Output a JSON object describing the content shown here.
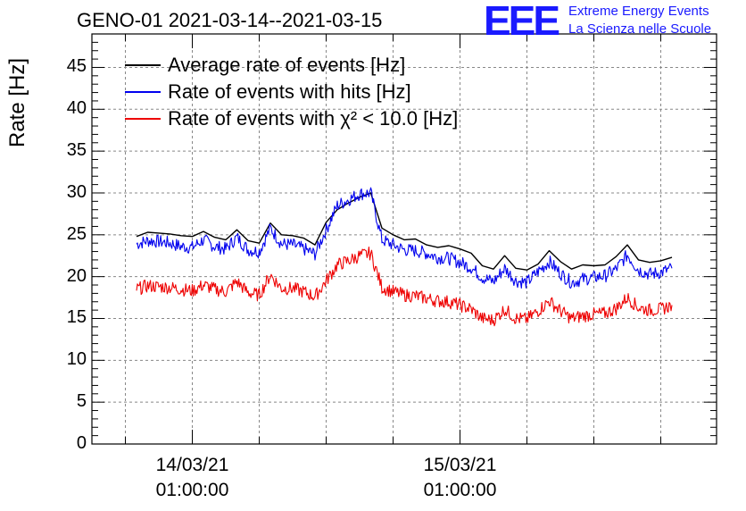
{
  "header": {
    "title": "GENO-01 2021-03-14--2021-03-15",
    "logo_text": "EEE",
    "brand_line1": "Extreme Energy Events",
    "brand_line2": "La Scienza nelle Scuole"
  },
  "colors": {
    "average": "#000000",
    "hits": "#0000ee",
    "chi2": "#ee0000",
    "grid": "#888888",
    "brand": "#1a1aff"
  },
  "chart_data": {
    "type": "line",
    "ylabel": "Rate [Hz]",
    "ylim": [
      0,
      49
    ],
    "yticks": [
      0,
      5,
      10,
      15,
      20,
      25,
      30,
      35,
      40,
      45
    ],
    "ytick_labels": [
      "0",
      "5",
      "10",
      "15",
      "20",
      "25",
      "30",
      "35",
      "40",
      "45"
    ],
    "xlim_hours_label": "2021-03-14 to 2021-03-15",
    "xticks": [
      {
        "date": "14/03/21",
        "time": "01:00:00"
      },
      {
        "date": "15/03/21",
        "time": "01:00:00"
      }
    ],
    "grid": true,
    "legend_position": "top-left",
    "series": [
      {
        "name": "Average rate of events [Hz]",
        "color": "#000000",
        "x": [
          "2021-03-13 20:00",
          "2021-03-13 21:00",
          "2021-03-13 22:00",
          "2021-03-13 23:00",
          "2021-03-14 00:00",
          "2021-03-14 01:00",
          "2021-03-14 02:00",
          "2021-03-14 03:00",
          "2021-03-14 04:00",
          "2021-03-14 05:00",
          "2021-03-14 06:00",
          "2021-03-14 07:00",
          "2021-03-14 08:00",
          "2021-03-14 09:00",
          "2021-03-14 10:00",
          "2021-03-14 11:00",
          "2021-03-14 12:00",
          "2021-03-14 13:00",
          "2021-03-14 14:00",
          "2021-03-14 15:00",
          "2021-03-14 16:00",
          "2021-03-14 17:00",
          "2021-03-14 18:00",
          "2021-03-14 19:00",
          "2021-03-14 20:00",
          "2021-03-14 21:00",
          "2021-03-14 22:00",
          "2021-03-14 23:00",
          "2021-03-15 00:00",
          "2021-03-15 01:00",
          "2021-03-15 02:00",
          "2021-03-15 03:00",
          "2021-03-15 04:00",
          "2021-03-15 05:00",
          "2021-03-15 06:00",
          "2021-03-15 07:00",
          "2021-03-15 08:00",
          "2021-03-15 09:00",
          "2021-03-15 10:00",
          "2021-03-15 11:00",
          "2021-03-15 12:00",
          "2021-03-15 13:00",
          "2021-03-15 14:00",
          "2021-03-15 15:00",
          "2021-03-15 16:00",
          "2021-03-15 17:00",
          "2021-03-15 18:00",
          "2021-03-15 19:00",
          "2021-03-15 20:00"
        ],
        "y": [
          24.8,
          25.3,
          25.2,
          25.1,
          24.9,
          24.8,
          25.4,
          24.7,
          24.4,
          25.6,
          24.3,
          24.0,
          26.4,
          25.0,
          24.9,
          24.6,
          23.8,
          26.5,
          28.0,
          28.8,
          29.5,
          30.0,
          25.8,
          25.0,
          24.4,
          24.5,
          23.8,
          23.5,
          23.7,
          23.3,
          22.8,
          21.3,
          20.9,
          22.5,
          21.0,
          20.8,
          21.5,
          23.1,
          21.8,
          20.9,
          21.4,
          21.3,
          21.4,
          22.4,
          23.8,
          22.0,
          21.7,
          21.9,
          22.3
        ]
      },
      {
        "name": "Rate of events with hits [Hz]",
        "color": "#0000ee",
        "x": [
          "2021-03-13 20:00",
          "2021-03-13 21:00",
          "2021-03-13 22:00",
          "2021-03-13 23:00",
          "2021-03-14 00:00",
          "2021-03-14 01:00",
          "2021-03-14 02:00",
          "2021-03-14 03:00",
          "2021-03-14 04:00",
          "2021-03-14 05:00",
          "2021-03-14 06:00",
          "2021-03-14 07:00",
          "2021-03-14 08:00",
          "2021-03-14 09:00",
          "2021-03-14 10:00",
          "2021-03-14 11:00",
          "2021-03-14 12:00",
          "2021-03-14 13:00",
          "2021-03-14 14:00",
          "2021-03-14 15:00",
          "2021-03-14 16:00",
          "2021-03-14 17:00",
          "2021-03-14 18:00",
          "2021-03-14 19:00",
          "2021-03-14 20:00",
          "2021-03-14 21:00",
          "2021-03-14 22:00",
          "2021-03-14 23:00",
          "2021-03-15 00:00",
          "2021-03-15 01:00",
          "2021-03-15 02:00",
          "2021-03-15 03:00",
          "2021-03-15 04:00",
          "2021-03-15 05:00",
          "2021-03-15 06:00",
          "2021-03-15 07:00",
          "2021-03-15 08:00",
          "2021-03-15 09:00",
          "2021-03-15 10:00",
          "2021-03-15 11:00",
          "2021-03-15 12:00",
          "2021-03-15 13:00",
          "2021-03-15 14:00",
          "2021-03-15 15:00",
          "2021-03-15 16:00",
          "2021-03-15 17:00",
          "2021-03-15 18:00",
          "2021-03-15 19:00",
          "2021-03-15 20:00"
        ],
        "y": [
          23.9,
          24.3,
          24.2,
          24.0,
          23.6,
          23.5,
          24.4,
          23.6,
          23.3,
          24.7,
          23.2,
          23.0,
          25.8,
          23.9,
          23.8,
          23.3,
          22.7,
          25.6,
          28.5,
          29.2,
          29.9,
          30.0,
          24.4,
          23.8,
          23.2,
          23.1,
          22.8,
          22.3,
          22.2,
          21.7,
          21.1,
          19.9,
          19.4,
          21.0,
          19.5,
          19.3,
          20.6,
          21.8,
          20.4,
          19.3,
          19.7,
          19.9,
          20.1,
          20.9,
          22.6,
          20.8,
          20.3,
          20.5,
          21.0
        ]
      },
      {
        "name": "Rate of events with χ² < 10.0 [Hz]",
        "color": "#ee0000",
        "x": [
          "2021-03-13 20:00",
          "2021-03-13 21:00",
          "2021-03-13 22:00",
          "2021-03-13 23:00",
          "2021-03-14 00:00",
          "2021-03-14 01:00",
          "2021-03-14 02:00",
          "2021-03-14 03:00",
          "2021-03-14 04:00",
          "2021-03-14 05:00",
          "2021-03-14 06:00",
          "2021-03-14 07:00",
          "2021-03-14 08:00",
          "2021-03-14 09:00",
          "2021-03-14 10:00",
          "2021-03-14 11:00",
          "2021-03-14 12:00",
          "2021-03-14 13:00",
          "2021-03-14 14:00",
          "2021-03-14 15:00",
          "2021-03-14 16:00",
          "2021-03-14 17:00",
          "2021-03-14 18:00",
          "2021-03-14 19:00",
          "2021-03-14 20:00",
          "2021-03-14 21:00",
          "2021-03-14 22:00",
          "2021-03-14 23:00",
          "2021-03-15 00:00",
          "2021-03-15 01:00",
          "2021-03-15 02:00",
          "2021-03-15 03:00",
          "2021-03-15 04:00",
          "2021-03-15 05:00",
          "2021-03-15 06:00",
          "2021-03-15 07:00",
          "2021-03-15 08:00",
          "2021-03-15 09:00",
          "2021-03-15 10:00",
          "2021-03-15 11:00",
          "2021-03-15 12:00",
          "2021-03-15 13:00",
          "2021-03-15 14:00",
          "2021-03-15 15:00",
          "2021-03-15 16:00",
          "2021-03-15 17:00",
          "2021-03-15 18:00",
          "2021-03-15 19:00",
          "2021-03-15 20:00"
        ],
        "y": [
          18.5,
          18.9,
          18.8,
          18.7,
          18.5,
          18.3,
          19.0,
          18.5,
          18.2,
          19.4,
          18.1,
          17.8,
          20.2,
          18.6,
          18.6,
          18.2,
          17.6,
          19.5,
          21.4,
          21.9,
          22.5,
          22.8,
          18.7,
          18.2,
          17.8,
          17.7,
          17.4,
          17.1,
          17.0,
          16.6,
          16.1,
          15.0,
          14.8,
          16.1,
          15.0,
          14.9,
          15.9,
          17.1,
          15.9,
          15.0,
          15.3,
          15.5,
          15.6,
          16.2,
          17.5,
          16.3,
          16.0,
          16.1,
          16.6
        ]
      }
    ]
  }
}
